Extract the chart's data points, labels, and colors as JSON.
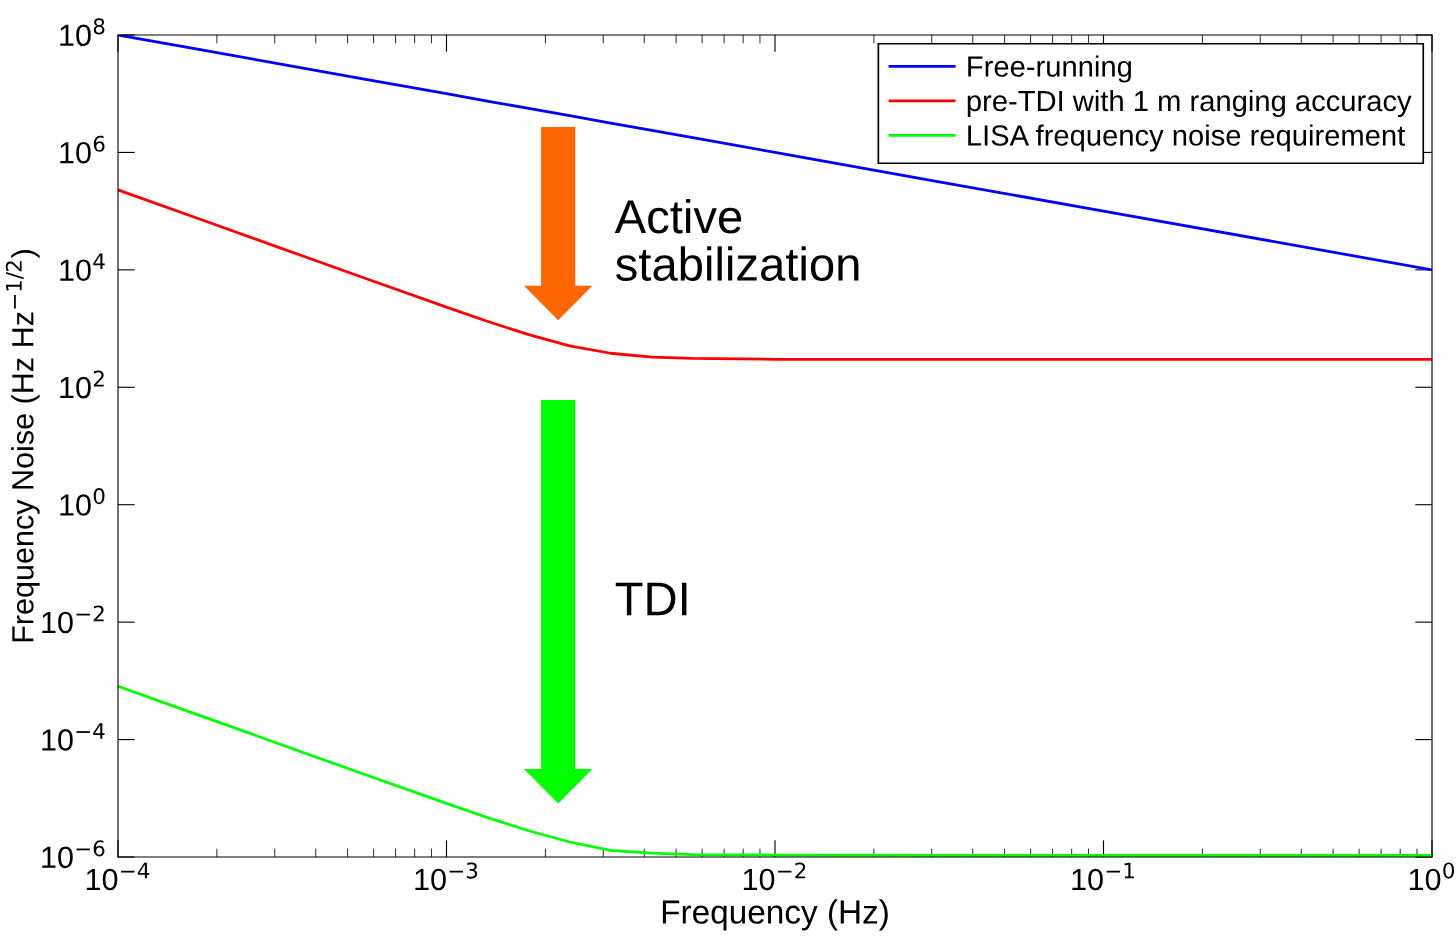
{
  "chart_data": {
    "type": "line",
    "xlabel": "Frequency (Hz)",
    "ylabel": "Frequency Noise (Hz Hz$^{−1/2}$)",
    "log": "xy",
    "grid": false,
    "legend": "top right",
    "line_style": "solid",
    "marker": "none",
    "x": [
      0.0001,
      0.000178,
      0.000316,
      0.000562,
      0.001,
      0.00133,
      0.00178,
      0.00237,
      0.00316,
      0.00422,
      0.00562,
      0.01,
      0.0316,
      0.1,
      1
    ],
    "series": [
      {
        "name": "Free-running",
        "color": "#0000ff",
        "values": [
          100000000,
          56200000,
          31600000,
          17800000,
          10000000,
          7500000,
          5620000,
          4220000,
          3160000,
          2370000,
          1780000,
          1000000,
          316000,
          100000,
          10000
        ]
      },
      {
        "name": "pre-TDI with 1 m ranging accuracy",
        "color": "#ff0000",
        "values": [
          230000,
          72700,
          23000,
          7280,
          2320,
          1330,
          790,
          507,
          380,
          327,
          310,
          300,
          300,
          300,
          300
        ]
      },
      {
        "name": "LISA frequency noise requirement",
        "color": "#00ff00",
        "values": [
          0.00081,
          0.000256,
          8.1e-05,
          2.56e-05,
          8.2e-06,
          4.7e-06,
          2.8e-06,
          1.8e-06,
          1.3e-06,
          1.16e-06,
          1.1e-06,
          1.08e-06,
          1.07e-06,
          1.07e-06,
          1.07e-06
        ]
      }
    ],
    "xlim": [
      0.0001,
      1
    ],
    "ylim": [
      1e-06,
      100000000
    ],
    "xticks": [
      {
        "value": 0.0001,
        "label": "10$^{−4}$"
      },
      {
        "value": 0.001,
        "label": "10$^{−3}$"
      },
      {
        "value": 0.01,
        "label": "10$^{−2}$"
      },
      {
        "value": 0.1,
        "label": "10$^{−1}$"
      },
      {
        "value": 1,
        "label": "10$^{0}$"
      }
    ],
    "yticks": [
      {
        "value": 1e-06,
        "label": "10$^{−6}$"
      },
      {
        "value": 0.0001,
        "label": "10$^{−4}$"
      },
      {
        "value": 0.01,
        "label": "10$^{−2}$"
      },
      {
        "value": 1,
        "label": "10$^{0}$"
      },
      {
        "value": 100,
        "label": "10$^{2}$"
      },
      {
        "value": 10000,
        "label": "10$^{4}$"
      },
      {
        "value": 1000000,
        "label": "10$^{6}$"
      },
      {
        "value": 100000000,
        "label": "10$^{8}$"
      }
    ],
    "annotations": [
      "Active\nstabilization",
      "TDI"
    ]
  }
}
